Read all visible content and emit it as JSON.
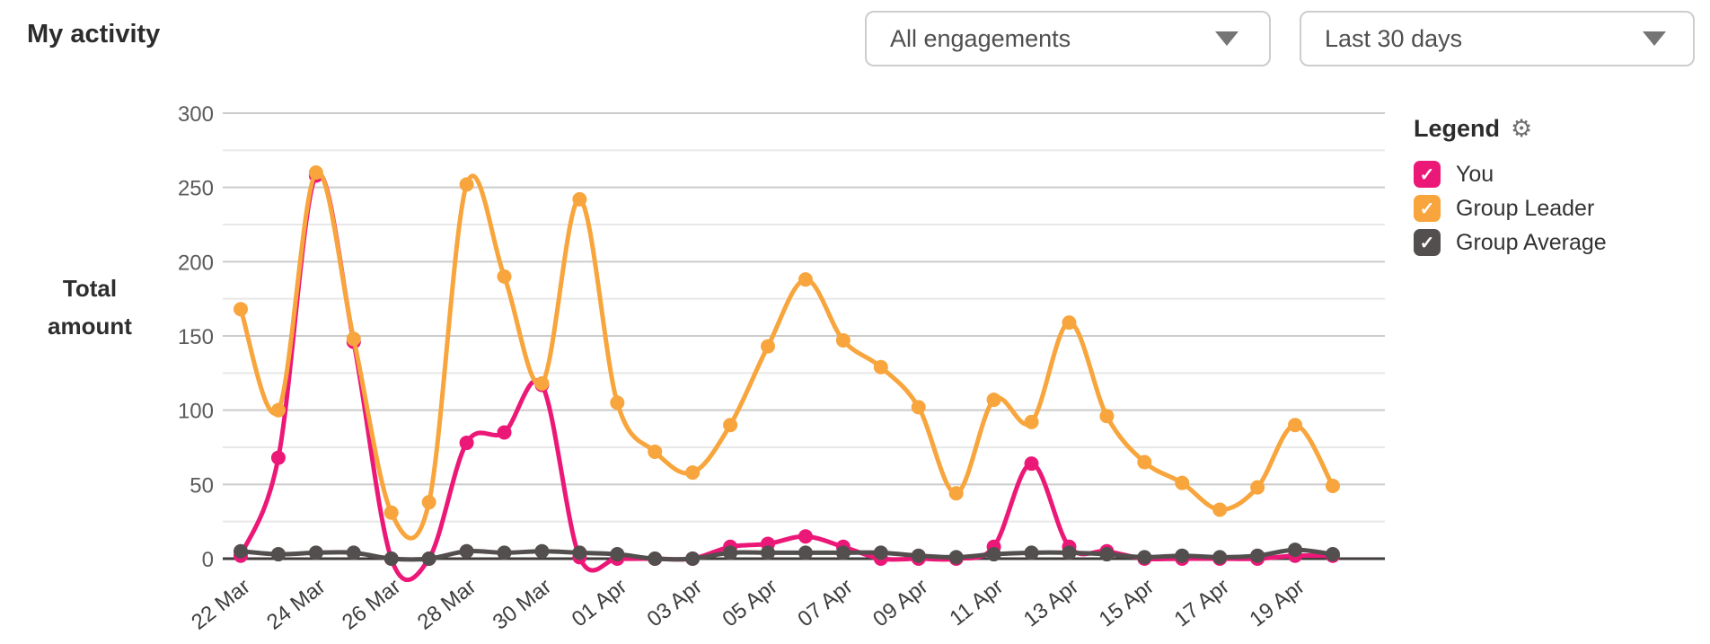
{
  "header": {
    "title": "My activity"
  },
  "filters": {
    "engagement": {
      "value": "All engagements"
    },
    "range": {
      "value": "Last 30 days"
    }
  },
  "legend": {
    "title": "Legend",
    "gear_icon": "⚙",
    "items": [
      {
        "label": "You",
        "color": "#EC1878",
        "checked": true,
        "check_glyph": "✓"
      },
      {
        "label": "Group Leader",
        "color": "#F7A53C",
        "checked": true,
        "check_glyph": "✓"
      },
      {
        "label": "Group Average",
        "color": "#534F4E",
        "checked": true,
        "check_glyph": "✓"
      }
    ]
  },
  "chart_data": {
    "type": "line",
    "title": "My activity",
    "ylabel": "Total amount",
    "xlabel": "",
    "ylim": [
      0,
      300
    ],
    "yticks": [
      0,
      50,
      100,
      150,
      200,
      250,
      300
    ],
    "y_minor_step": 25,
    "grid": "horizontal",
    "legend_position": "right",
    "x": [
      "22 Mar",
      "23 Mar",
      "24 Mar",
      "25 Mar",
      "26 Mar",
      "27 Mar",
      "28 Mar",
      "29 Mar",
      "30 Mar",
      "31 Mar",
      "01 Apr",
      "02 Apr",
      "03 Apr",
      "04 Apr",
      "05 Apr",
      "06 Apr",
      "07 Apr",
      "08 Apr",
      "09 Apr",
      "10 Apr",
      "11 Apr",
      "12 Apr",
      "13 Apr",
      "14 Apr",
      "15 Apr",
      "16 Apr",
      "17 Apr",
      "18 Apr",
      "19 Apr",
      "20 Apr"
    ],
    "x_tick_step": 2,
    "series": [
      {
        "name": "You",
        "color": "#EC1878",
        "values": [
          2,
          68,
          258,
          146,
          0,
          0,
          78,
          85,
          117,
          1,
          0,
          0,
          0,
          8,
          10,
          15,
          8,
          0,
          0,
          0,
          8,
          64,
          8,
          5,
          0,
          0,
          0,
          0,
          2,
          2
        ]
      },
      {
        "name": "Group Leader",
        "color": "#F7A53C",
        "values": [
          168,
          100,
          260,
          148,
          31,
          38,
          252,
          190,
          118,
          242,
          105,
          72,
          58,
          90,
          143,
          188,
          147,
          129,
          102,
          44,
          107,
          92,
          159,
          96,
          65,
          51,
          33,
          48,
          90,
          49
        ]
      },
      {
        "name": "Group Average",
        "color": "#534F4E",
        "values": [
          5,
          3,
          4,
          4,
          0,
          0,
          5,
          4,
          5,
          4,
          3,
          0,
          0,
          4,
          4,
          4,
          4,
          4,
          2,
          1,
          3,
          4,
          4,
          3,
          1,
          2,
          1,
          2,
          6,
          3
        ]
      }
    ]
  }
}
